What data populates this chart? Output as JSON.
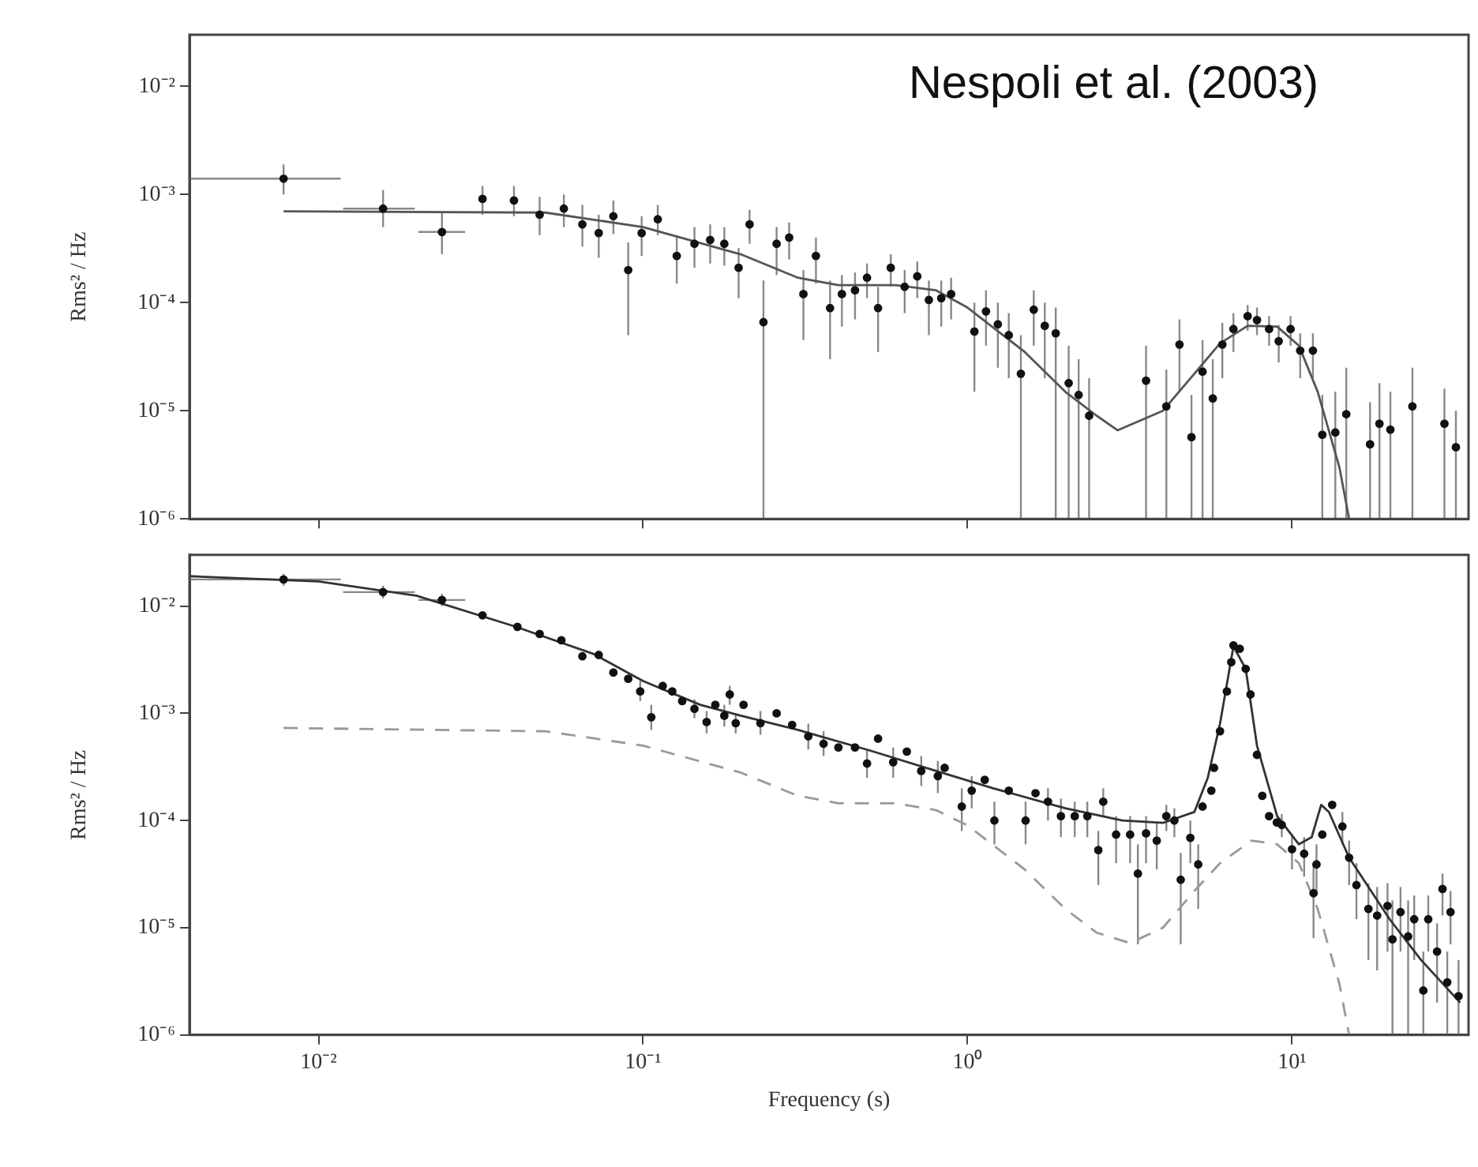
{
  "chart_data": [
    {
      "type": "scatter",
      "log": "xy",
      "tick_labels": "y",
      "ylabel": "Rms² / Hz",
      "annotations": [
        "Nespoli et al. (2003)"
      ],
      "xlim": [
        0.004,
        35
      ],
      "xticks": [
        {
          "value": 0.01,
          "label": null
        },
        {
          "value": 0.1,
          "label": null
        },
        {
          "value": 1,
          "label": null
        },
        {
          "value": 10,
          "label": null
        }
      ],
      "ylim": [
        1e-06,
        0.03
      ],
      "yticks": [
        {
          "value": 1e-06,
          "label": "10⁻⁶"
        },
        {
          "value": 1e-05,
          "label": "10⁻⁵"
        },
        {
          "value": 0.0001,
          "label": "10⁻⁴"
        },
        {
          "value": 0.001,
          "label": "10⁻³"
        },
        {
          "value": 0.01,
          "label": "10⁻²"
        }
      ],
      "series": [
        {
          "type": "scatter",
          "color": "#111111",
          "marker": "circle",
          "x": [
            0.0078,
            0.0158,
            0.024,
            0.032,
            0.04,
            0.048,
            0.057,
            0.065,
            0.073,
            0.081,
            0.09,
            0.099,
            0.111,
            0.127,
            0.144,
            0.161,
            0.178,
            0.197,
            0.213,
            0.235,
            0.258,
            0.282,
            0.312,
            0.341,
            0.377,
            0.41,
            0.45,
            0.49,
            0.53,
            0.58,
            0.64,
            0.7,
            0.76,
            0.83,
            0.89,
            1.05,
            1.14,
            1.24,
            1.34,
            1.46,
            1.6,
            1.73,
            1.87,
            2.05,
            2.2,
            2.37,
            3.55,
            4.1,
            4.5,
            4.9,
            5.3,
            5.7,
            6.1,
            6.6,
            7.3,
            7.8,
            8.5,
            9.1,
            9.9,
            10.6,
            11.6,
            12.4,
            13.6,
            14.7,
            17.4,
            18.6,
            20.1,
            23.5,
            29.5,
            32
          ],
          "values": [
            0.0014,
            0.00074,
            0.00045,
            0.00091,
            0.00088,
            0.00065,
            0.00074,
            0.00053,
            0.00044,
            0.00063,
            0.0002,
            0.00044,
            0.00059,
            0.00027,
            0.00035,
            0.00038,
            0.00035,
            0.00021,
            0.00053,
            6.6e-05,
            0.00035,
            0.0004,
            0.00012,
            0.00027,
            8.9e-05,
            0.00012,
            0.00013,
            0.00017,
            8.9e-05,
            0.00021,
            0.00014,
            0.000175,
            0.000106,
            0.00011,
            0.00012,
            5.4e-05,
            8.3e-05,
            6.3e-05,
            5e-05,
            2.2e-05,
            8.6e-05,
            6.1e-05,
            5.2e-05,
            1.8e-05,
            1.4e-05,
            9e-06,
            1.9e-05,
            1.1e-05,
            4.1e-05,
            5.7e-06,
            2.3e-05,
            1.3e-05,
            4.1e-05,
            5.7e-05,
            7.5e-05,
            6.9e-05,
            5.7e-05,
            4.4e-05,
            5.7e-05,
            3.6e-05,
            3.6e-05,
            6e-06,
            6.3e-06,
            9.3e-06,
            4.9e-06,
            7.6e-06,
            6.7e-06,
            1.1e-05,
            7.6e-06,
            4.6e-06
          ],
          "errors": [
            [
              0.001,
              0.0019
            ],
            [
              0.0005,
              0.0011
            ],
            [
              0.00028,
              0.0007
            ],
            [
              0.00065,
              0.0012
            ],
            [
              0.00063,
              0.0012
            ],
            [
              0.00042,
              0.00095
            ],
            [
              0.0005,
              0.001
            ],
            [
              0.00033,
              0.0008
            ],
            [
              0.00026,
              0.00065
            ],
            [
              0.00043,
              0.00088
            ],
            [
              5e-05,
              0.00036
            ],
            [
              0.00027,
              0.00063
            ],
            [
              0.00042,
              0.0008
            ],
            [
              0.00015,
              0.00042
            ],
            [
              0.00021,
              0.0005
            ],
            [
              0.00023,
              0.00053
            ],
            [
              0.00022,
              0.0005
            ],
            [
              0.00011,
              0.00032
            ],
            [
              0.00035,
              0.00072
            ],
            [
              1e-06,
              0.00016
            ],
            [
              0.00018,
              0.0005
            ],
            [
              0.00025,
              0.00055
            ],
            [
              4.5e-05,
              0.0002
            ],
            [
              0.00015,
              0.0004
            ],
            [
              3e-05,
              0.00016
            ],
            [
              6e-05,
              0.00018
            ],
            [
              7e-05,
              0.00019
            ],
            [
              0.00011,
              0.00023
            ],
            [
              3.5e-05,
              0.00014
            ],
            [
              0.00014,
              0.00028
            ],
            [
              8e-05,
              0.0002
            ],
            [
              0.00011,
              0.00024
            ],
            [
              5e-05,
              0.00016
            ],
            [
              6e-05,
              0.00016
            ],
            [
              7e-05,
              0.00017
            ],
            [
              1.5e-05,
              0.0001
            ],
            [
              4e-05,
              0.00013
            ],
            [
              2.5e-05,
              0.0001
            ],
            [
              2e-05,
              8e-05
            ],
            [
              1e-06,
              5e-05
            ],
            [
              4e-05,
              0.00013
            ],
            [
              2e-05,
              0.0001
            ],
            [
              1e-06,
              9e-05
            ],
            [
              1e-06,
              4e-05
            ],
            [
              1e-06,
              3e-05
            ],
            [
              1e-06,
              2e-05
            ],
            [
              1e-06,
              4e-05
            ],
            [
              1e-06,
              2.4e-05
            ],
            [
              1.5e-05,
              7e-05
            ],
            [
              1e-06,
              1.4e-05
            ],
            [
              1e-06,
              4.5e-05
            ],
            [
              1e-06,
              3e-05
            ],
            [
              2e-05,
              6.5e-05
            ],
            [
              3.5e-05,
              8e-05
            ],
            [
              5.5e-05,
              9.5e-05
            ],
            [
              5e-05,
              9e-05
            ],
            [
              4e-05,
              7.5e-05
            ],
            [
              2.8e-05,
              6.2e-05
            ],
            [
              4e-05,
              7.5e-05
            ],
            [
              2e-05,
              5.2e-05
            ],
            [
              2e-05,
              5.2e-05
            ],
            [
              1e-06,
              1.4e-05
            ],
            [
              1e-06,
              1.5e-05
            ],
            [
              1e-06,
              2.5e-05
            ],
            [
              1e-06,
              1.2e-05
            ],
            [
              1e-06,
              1.8e-05
            ],
            [
              1e-06,
              1.5e-05
            ],
            [
              1e-06,
              2.5e-05
            ],
            [
              1e-06,
              1.6e-05
            ],
            [
              1e-06,
              1e-05
            ]
          ],
          "xerrors": [
            [
              0.004,
              0.0117
            ],
            [
              0.0119,
              0.0198
            ],
            [
              0.0203,
              0.0283
            ],
            null,
            null,
            null,
            null,
            null,
            null,
            null,
            null,
            null,
            null,
            null,
            null,
            null,
            null,
            null,
            null,
            null,
            null,
            null,
            null,
            null,
            null,
            null,
            null,
            null,
            null,
            null,
            null,
            null,
            null,
            null,
            null,
            null,
            null,
            null,
            null,
            null,
            null,
            null,
            null,
            null,
            null,
            null,
            null,
            null,
            null,
            null,
            null,
            null,
            null,
            null,
            null,
            null,
            null,
            null,
            null,
            null,
            null,
            null,
            null,
            null,
            null,
            null,
            null,
            null,
            null,
            null
          ]
        },
        {
          "type": "line",
          "color": "#555555",
          "x": [
            0.0078,
            0.05,
            0.1,
            0.2,
            0.3,
            0.4,
            0.6,
            0.8,
            1.0,
            1.5,
            2,
            2.5,
            2.9,
            4,
            5,
            6,
            7.3,
            9,
            10.5,
            12,
            14,
            15
          ],
          "values": [
            0.0007,
            0.00068,
            0.0005,
            0.00028,
            0.00017,
            0.000145,
            0.000145,
            0.00013,
            9e-05,
            3.5e-05,
            1.5e-05,
            9e-06,
            6.6e-06,
            1e-05,
            2.2e-05,
            4.2e-05,
            6.1e-05,
            6e-05,
            4e-05,
            1.5e-05,
            3e-06,
            1e-06
          ]
        }
      ]
    },
    {
      "type": "scatter",
      "log": "xy",
      "xlabel": "Frequency (s)",
      "ylabel": "Rms² / Hz",
      "xlim": [
        0.004,
        35
      ],
      "xticks": [
        {
          "value": 0.01,
          "label": "10⁻²"
        },
        {
          "value": 0.1,
          "label": "10⁻¹"
        },
        {
          "value": 1,
          "label": "10⁰"
        },
        {
          "value": 10,
          "label": "10¹"
        }
      ],
      "ylim": [
        1e-06,
        0.03
      ],
      "yticks": [
        {
          "value": 1e-06,
          "label": "10⁻⁶"
        },
        {
          "value": 1e-05,
          "label": "10⁻⁵"
        },
        {
          "value": 0.0001,
          "label": "10⁻⁴"
        },
        {
          "value": 0.001,
          "label": "10⁻³"
        },
        {
          "value": 0.01,
          "label": "10⁻²"
        }
      ],
      "series": [
        {
          "type": "scatter",
          "color": "#111111",
          "marker": "circle",
          "x": [
            0.0078,
            0.0158,
            0.024,
            0.032,
            0.041,
            0.048,
            0.056,
            0.065,
            0.073,
            0.081,
            0.09,
            0.098,
            0.106,
            0.115,
            0.123,
            0.132,
            0.144,
            0.157,
            0.167,
            0.178,
            0.185,
            0.193,
            0.204,
            0.23,
            0.258,
            0.288,
            0.323,
            0.36,
            0.4,
            0.45,
            0.49,
            0.53,
            0.59,
            0.65,
            0.72,
            0.81,
            0.85,
            0.96,
            1.03,
            1.13,
            1.21,
            1.34,
            1.51,
            1.62,
            1.77,
            1.94,
            2.14,
            2.34,
            2.53,
            2.62,
            2.87,
            3.17,
            3.35,
            3.55,
            3.83,
            4.1,
            4.34,
            4.54,
            4.86,
            5.14,
            5.3,
            5.64,
            5.75,
            6.0,
            6.3,
            6.5,
            6.6,
            6.9,
            7.2,
            7.45,
            7.8,
            8.1,
            8.5,
            8.98,
            9.3,
            10.0,
            10.9,
            11.65,
            11.9,
            12.4,
            13.3,
            14.3,
            15.0,
            15.8,
            17.2,
            18.3,
            19.7,
            20.4,
            21.6,
            22.8,
            23.8,
            25.4,
            26.3,
            28.0,
            29.1,
            30.1,
            30.8,
            32.6
          ],
          "values": [
            0.0177,
            0.0135,
            0.0114,
            0.0082,
            0.0064,
            0.0055,
            0.0048,
            0.0034,
            0.0035,
            0.0024,
            0.0021,
            0.0016,
            0.00092,
            0.0018,
            0.0016,
            0.0013,
            0.0011,
            0.00083,
            0.0012,
            0.00095,
            0.0015,
            0.00081,
            0.0012,
            0.00081,
            0.001,
            0.00078,
            0.00061,
            0.00052,
            0.00048,
            0.00048,
            0.00034,
            0.00058,
            0.00035,
            0.00044,
            0.00029,
            0.00026,
            0.00031,
            0.000135,
            0.00019,
            0.00024,
            0.0001,
            0.00019,
            0.0001,
            0.00018,
            0.00015,
            0.00011,
            0.00011,
            0.00011,
            5.3e-05,
            0.00015,
            7.4e-05,
            7.4e-05,
            3.2e-05,
            7.6e-05,
            6.5e-05,
            0.00011,
            0.0001,
            2.8e-05,
            6.9e-05,
            3.9e-05,
            0.000135,
            0.00019,
            0.00031,
            0.00068,
            0.0016,
            0.003,
            0.0043,
            0.004,
            0.0026,
            0.0015,
            0.00041,
            0.00017,
            0.00011,
            9.6e-05,
            9.1e-05,
            5.4e-05,
            4.9e-05,
            2.1e-05,
            3.9e-05,
            7.4e-05,
            0.00014,
            8.8e-05,
            4.5e-05,
            2.5e-05,
            1.5e-05,
            1.3e-05,
            1.6e-05,
            7.8e-06,
            1.4e-05,
            8.3e-06,
            1.2e-05,
            2.6e-06,
            1.2e-05,
            6e-06,
            2.3e-05,
            3.1e-06,
            1.4e-05,
            2.3e-06
          ],
          "errors": [
            [
              0.0155,
              0.02
            ],
            [
              0.0118,
              0.0155
            ],
            [
              0.01,
              0.013
            ],
            null,
            null,
            null,
            null,
            null,
            null,
            null,
            null,
            [
              0.0013,
              0.002
            ],
            [
              0.0007,
              0.0012
            ],
            null,
            null,
            null,
            [
              0.0009,
              0.00135
            ],
            [
              0.00065,
              0.00105
            ],
            null,
            [
              0.00075,
              0.0012
            ],
            [
              0.0012,
              0.0018
            ],
            [
              0.00065,
              0.001
            ],
            null,
            [
              0.00063,
              0.00105
            ],
            null,
            null,
            [
              0.00046,
              0.0008
            ],
            [
              0.0004,
              0.00068
            ],
            null,
            null,
            [
              0.00025,
              0.00046
            ],
            null,
            [
              0.00025,
              0.00048
            ],
            null,
            [
              0.00021,
              0.0004
            ],
            [
              0.00018,
              0.00036
            ],
            null,
            [
              8e-05,
              0.0002
            ],
            [
              0.00013,
              0.00026
            ],
            null,
            [
              6e-05,
              0.00015
            ],
            null,
            [
              6e-05,
              0.00015
            ],
            null,
            [
              0.0001,
              0.0002
            ],
            [
              7e-05,
              0.00016
            ],
            [
              7e-05,
              0.00015
            ],
            [
              7e-05,
              0.00015
            ],
            [
              2.5e-05,
              8e-05
            ],
            [
              0.00011,
              0.0002
            ],
            [
              4e-05,
              0.00011
            ],
            [
              4e-05,
              0.00011
            ],
            [
              7e-06,
              6e-05
            ],
            [
              4e-05,
              0.00011
            ],
            [
              3.5e-05,
              9.5e-05
            ],
            [
              8e-05,
              0.00014
            ],
            [
              7e-05,
              0.00013
            ],
            [
              7e-06,
              5e-05
            ],
            [
              4e-05,
              0.0001
            ],
            [
              1.5e-05,
              6e-05
            ],
            null,
            null,
            null,
            null,
            null,
            null,
            null,
            null,
            null,
            null,
            null,
            null,
            null,
            null,
            [
              7e-05,
              0.000115
            ],
            [
              3.5e-05,
              7.5e-05
            ],
            [
              3e-05,
              7e-05
            ],
            [
              8e-06,
              4e-05
            ],
            [
              2e-05,
              6e-05
            ],
            null,
            null,
            [
              6e-05,
              0.00012
            ],
            [
              2.5e-05,
              6.5e-05
            ],
            [
              1.2e-05,
              4e-05
            ],
            [
              5e-06,
              2.6e-05
            ],
            [
              4e-06,
              2.4e-05
            ],
            [
              6e-06,
              2.6e-05
            ],
            [
              1e-06,
              1.8e-05
            ],
            [
              6e-06,
              2.4e-05
            ],
            [
              1e-06,
              1.8e-05
            ],
            [
              5e-06,
              2e-05
            ],
            [
              1e-06,
              6e-06
            ],
            [
              6e-06,
              2e-05
            ],
            [
              2e-06,
              1.1e-05
            ],
            [
              1.3e-05,
              3.2e-05
            ],
            [
              1e-06,
              6e-06
            ],
            [
              7e-06,
              2.2e-05
            ],
            [
              1e-06,
              5e-06
            ]
          ],
          "xerrors": [
            [
              0.004,
              0.0117
            ],
            [
              0.0119,
              0.0198
            ],
            [
              0.0203,
              0.0283
            ],
            null,
            null,
            null,
            null,
            null,
            null,
            null,
            null,
            null,
            null,
            null,
            null,
            null,
            null,
            null,
            null,
            null,
            null,
            null,
            null,
            null,
            null,
            null,
            null,
            null,
            null,
            null,
            null,
            null,
            null,
            null,
            null,
            null,
            null,
            null,
            null,
            null,
            null,
            null,
            null,
            null,
            null,
            null,
            null,
            null,
            null,
            null,
            null,
            null,
            null,
            null,
            null,
            null,
            null,
            null,
            null,
            null,
            null,
            null,
            null,
            null,
            null,
            null,
            null,
            null,
            null,
            null,
            null,
            null,
            null,
            null,
            null,
            null,
            null,
            null,
            null,
            null,
            null,
            null,
            null,
            null,
            null,
            null,
            null,
            null,
            null,
            null,
            null,
            null,
            null,
            null,
            null,
            null,
            null,
            null
          ]
        },
        {
          "type": "line",
          "color": "#333333",
          "x": [
            0.004,
            0.01,
            0.02,
            0.04,
            0.07,
            0.1,
            0.15,
            0.2,
            0.3,
            0.5,
            0.8,
            1.2,
            2,
            3,
            4,
            5,
            5.5,
            6,
            6.6,
            7.2,
            7.8,
            9,
            10.5,
            11.5,
            12.3,
            13,
            15,
            20,
            25,
            33
          ],
          "values": [
            0.019,
            0.017,
            0.0125,
            0.0065,
            0.0036,
            0.002,
            0.0012,
            0.00095,
            0.0007,
            0.00045,
            0.00029,
            0.0002,
            0.00013,
            0.0001,
            9.5e-05,
            0.00012,
            0.00025,
            0.0008,
            0.0042,
            0.0026,
            0.0005,
            0.00011,
            6e-05,
            7e-05,
            0.00014,
            0.00012,
            4.5e-05,
            1.2e-05,
            5e-06,
            2e-06
          ]
        },
        {
          "type": "line",
          "color": "#999999",
          "line_style": "dashed",
          "x": [
            0.0078,
            0.05,
            0.1,
            0.2,
            0.3,
            0.4,
            0.6,
            0.8,
            1.0,
            1.5,
            2,
            2.5,
            3.17,
            4,
            5,
            6,
            7.5,
            9,
            10.5,
            12,
            14,
            15
          ],
          "values": [
            0.00073,
            0.00068,
            0.0005,
            0.00028,
            0.00017,
            0.000145,
            0.000145,
            0.000125,
            9e-05,
            3.5e-05,
            1.5e-05,
            9e-06,
            7.2e-06,
            1e-05,
            2.2e-05,
            4e-05,
            6.5e-05,
            6e-05,
            4e-05,
            1.5e-05,
            3e-06,
            1e-06
          ]
        }
      ]
    }
  ]
}
